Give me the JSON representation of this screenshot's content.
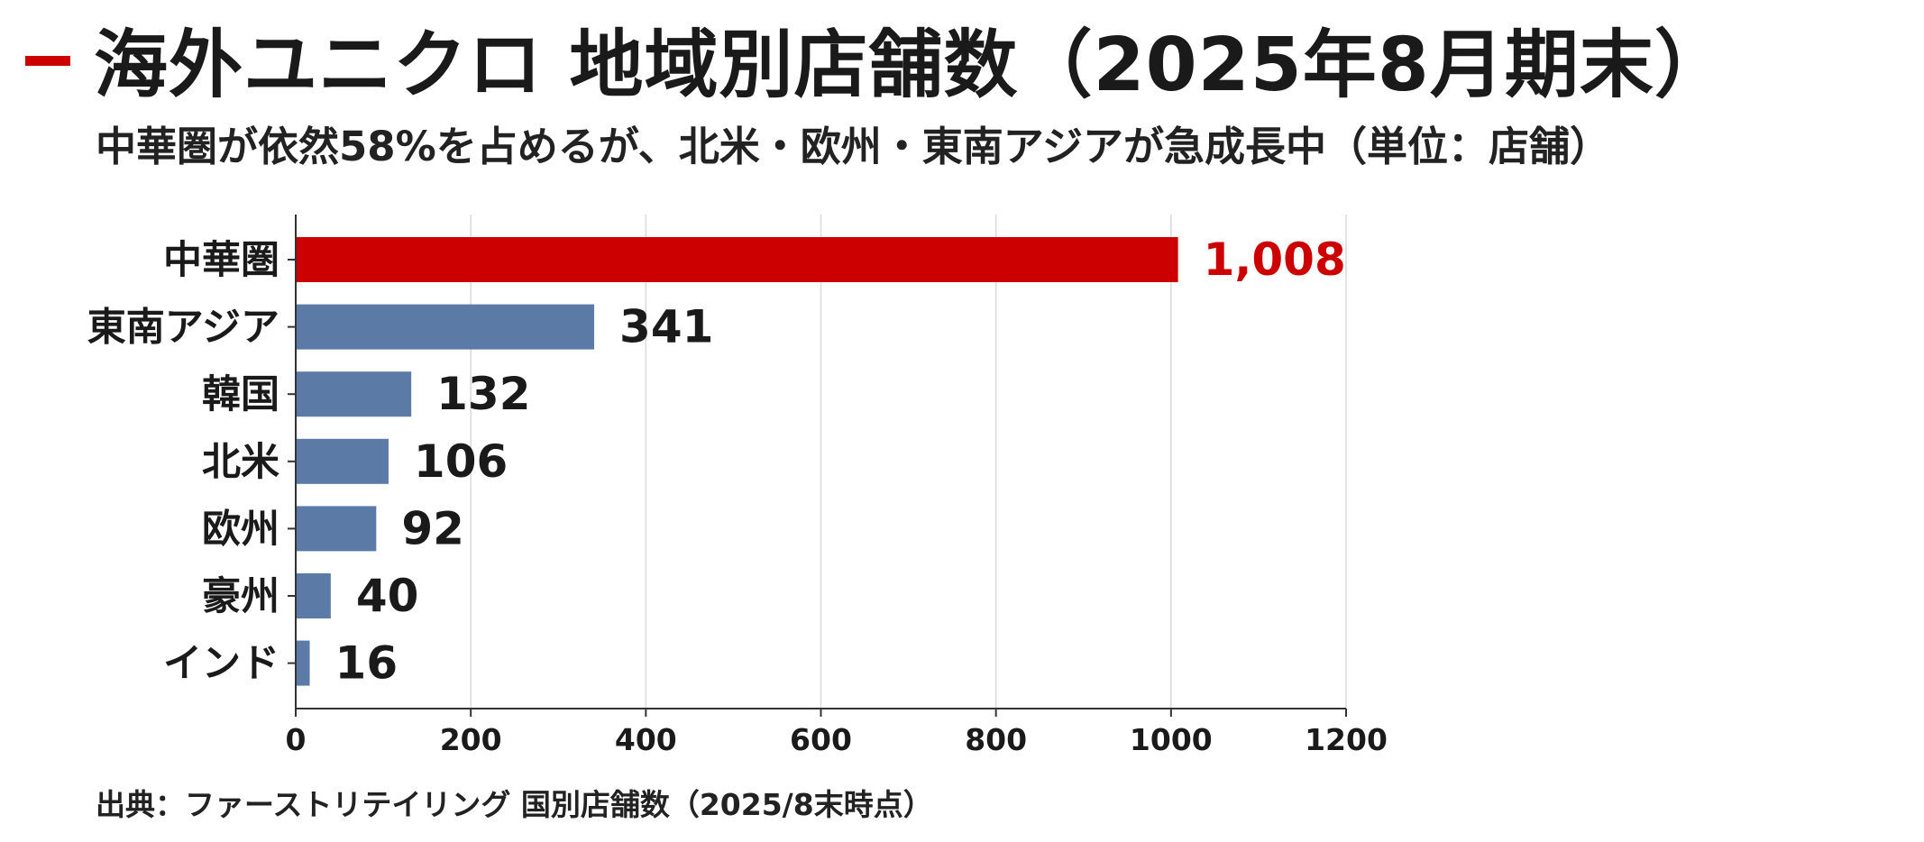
{
  "header": {
    "title": "海外ユニクロ 地域別店舗数（2025年8月期末）",
    "subtitle": "中華圏が依然58%を占めるが、北米・欧州・東南アジアが急成長中（単位：店舗）"
  },
  "footer": {
    "source": "出典：ファーストリテイリング 国別店舗数（2025/8末時点）"
  },
  "colors": {
    "accent": "#cc0000",
    "bar_default": "#5b7ba6",
    "bar_highlight": "#cc0000",
    "grid": "#d9d9d9",
    "axis": "#333333",
    "text": "#1a1a1a"
  },
  "chart_data": {
    "type": "bar",
    "orientation": "horizontal",
    "categories": [
      "中華圏",
      "東南アジア",
      "韓国",
      "北米",
      "欧州",
      "豪州",
      "インド"
    ],
    "values": [
      1008,
      341,
      132,
      106,
      92,
      40,
      16
    ],
    "value_labels": [
      "1,008",
      "341",
      "132",
      "106",
      "92",
      "40",
      "16"
    ],
    "highlight_index": 0,
    "xlim": [
      0,
      1200
    ],
    "xticks": [
      0,
      200,
      400,
      600,
      800,
      1000,
      1200
    ],
    "xtick_labels": [
      "0",
      "200",
      "400",
      "600",
      "800",
      "1000",
      "1200"
    ],
    "grid": "vertical",
    "title": "海外ユニクロ 地域別店舗数（2025年8月期末）",
    "xlabel": "",
    "ylabel": ""
  }
}
